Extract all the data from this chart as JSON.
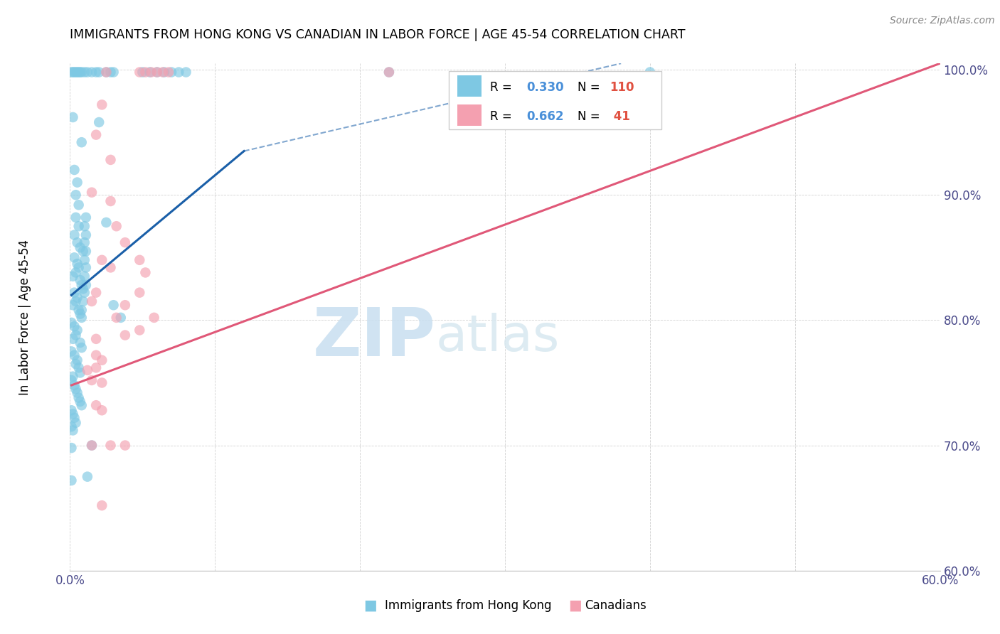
{
  "title": "IMMIGRANTS FROM HONG KONG VS CANADIAN IN LABOR FORCE | AGE 45-54 CORRELATION CHART",
  "source": "Source: ZipAtlas.com",
  "ylabel": "In Labor Force | Age 45-54",
  "xlim": [
    0.0,
    0.6
  ],
  "ylim": [
    0.6,
    1.005
  ],
  "xticks": [
    0.0,
    0.1,
    0.2,
    0.3,
    0.4,
    0.5,
    0.6
  ],
  "xticklabels": [
    "0.0%",
    "",
    "",
    "",
    "",
    "",
    "60.0%"
  ],
  "yticks": [
    0.6,
    0.7,
    0.8,
    0.9,
    1.0
  ],
  "yticklabels": [
    "60.0%",
    "70.0%",
    "80.0%",
    "90.0%",
    "100.0%"
  ],
  "blue_color": "#7ec8e3",
  "pink_color": "#f4a0b0",
  "blue_line_color": "#1a5fa8",
  "pink_line_color": "#e05878",
  "R_blue": 0.33,
  "N_blue": 110,
  "R_pink": 0.662,
  "N_pink": 41,
  "watermark": "ZIPatlas",
  "watermark_color": "#d0e8f5",
  "blue_line_solid": [
    [
      0.001,
      0.82
    ],
    [
      0.12,
      0.935
    ]
  ],
  "blue_line_dash": [
    [
      0.12,
      0.935
    ],
    [
      0.38,
      1.005
    ]
  ],
  "pink_line": [
    [
      0.001,
      0.748
    ],
    [
      0.6,
      1.005
    ]
  ],
  "blue_scatter": [
    [
      0.001,
      0.998
    ],
    [
      0.002,
      0.998
    ],
    [
      0.003,
      0.998
    ],
    [
      0.004,
      0.998
    ],
    [
      0.005,
      0.998
    ],
    [
      0.006,
      0.998
    ],
    [
      0.007,
      0.998
    ],
    [
      0.008,
      0.998
    ],
    [
      0.05,
      0.998
    ],
    [
      0.055,
      0.998
    ],
    [
      0.06,
      0.998
    ],
    [
      0.065,
      0.998
    ],
    [
      0.07,
      0.998
    ],
    [
      0.075,
      0.998
    ],
    [
      0.08,
      0.998
    ],
    [
      0.22,
      0.998
    ],
    [
      0.4,
      0.998
    ],
    [
      0.002,
      0.962
    ],
    [
      0.008,
      0.942
    ],
    [
      0.003,
      0.92
    ],
    [
      0.005,
      0.91
    ],
    [
      0.004,
      0.9
    ],
    [
      0.006,
      0.892
    ],
    [
      0.004,
      0.882
    ],
    [
      0.006,
      0.875
    ],
    [
      0.003,
      0.868
    ],
    [
      0.005,
      0.862
    ],
    [
      0.007,
      0.858
    ],
    [
      0.009,
      0.855
    ],
    [
      0.003,
      0.85
    ],
    [
      0.005,
      0.845
    ],
    [
      0.006,
      0.842
    ],
    [
      0.004,
      0.838
    ],
    [
      0.002,
      0.835
    ],
    [
      0.007,
      0.832
    ],
    [
      0.008,
      0.828
    ],
    [
      0.009,
      0.825
    ],
    [
      0.003,
      0.822
    ],
    [
      0.005,
      0.818
    ],
    [
      0.004,
      0.815
    ],
    [
      0.002,
      0.812
    ],
    [
      0.006,
      0.808
    ],
    [
      0.007,
      0.805
    ],
    [
      0.008,
      0.802
    ],
    [
      0.001,
      0.798
    ],
    [
      0.003,
      0.795
    ],
    [
      0.005,
      0.792
    ],
    [
      0.004,
      0.788
    ],
    [
      0.002,
      0.785
    ],
    [
      0.007,
      0.782
    ],
    [
      0.008,
      0.778
    ],
    [
      0.001,
      0.775
    ],
    [
      0.003,
      0.772
    ],
    [
      0.005,
      0.768
    ],
    [
      0.004,
      0.765
    ],
    [
      0.006,
      0.762
    ],
    [
      0.007,
      0.758
    ],
    [
      0.002,
      0.755
    ],
    [
      0.001,
      0.752
    ],
    [
      0.003,
      0.748
    ],
    [
      0.004,
      0.745
    ],
    [
      0.005,
      0.742
    ],
    [
      0.006,
      0.738
    ],
    [
      0.007,
      0.735
    ],
    [
      0.008,
      0.732
    ],
    [
      0.001,
      0.728
    ],
    [
      0.002,
      0.725
    ],
    [
      0.003,
      0.722
    ],
    [
      0.004,
      0.718
    ],
    [
      0.001,
      0.715
    ],
    [
      0.002,
      0.712
    ],
    [
      0.02,
      0.958
    ],
    [
      0.025,
      0.878
    ],
    [
      0.03,
      0.812
    ],
    [
      0.035,
      0.802
    ],
    [
      0.001,
      0.698
    ],
    [
      0.015,
      0.7
    ],
    [
      0.001,
      0.672
    ],
    [
      0.012,
      0.675
    ],
    [
      0.01,
      0.998
    ],
    [
      0.012,
      0.998
    ],
    [
      0.015,
      0.998
    ],
    [
      0.018,
      0.998
    ],
    [
      0.02,
      0.998
    ],
    [
      0.025,
      0.998
    ],
    [
      0.028,
      0.998
    ],
    [
      0.03,
      0.998
    ],
    [
      0.008,
      0.808
    ],
    [
      0.009,
      0.815
    ],
    [
      0.01,
      0.822
    ],
    [
      0.011,
      0.828
    ],
    [
      0.01,
      0.835
    ],
    [
      0.011,
      0.842
    ],
    [
      0.01,
      0.848
    ],
    [
      0.011,
      0.855
    ],
    [
      0.01,
      0.862
    ],
    [
      0.011,
      0.868
    ],
    [
      0.01,
      0.875
    ],
    [
      0.011,
      0.882
    ]
  ],
  "pink_scatter": [
    [
      0.025,
      0.998
    ],
    [
      0.048,
      0.998
    ],
    [
      0.052,
      0.998
    ],
    [
      0.056,
      0.998
    ],
    [
      0.06,
      0.998
    ],
    [
      0.064,
      0.998
    ],
    [
      0.068,
      0.998
    ],
    [
      0.22,
      0.998
    ],
    [
      0.022,
      0.972
    ],
    [
      0.018,
      0.948
    ],
    [
      0.028,
      0.928
    ],
    [
      0.015,
      0.902
    ],
    [
      0.028,
      0.895
    ],
    [
      0.032,
      0.875
    ],
    [
      0.038,
      0.862
    ],
    [
      0.022,
      0.848
    ],
    [
      0.028,
      0.842
    ],
    [
      0.048,
      0.848
    ],
    [
      0.048,
      0.822
    ],
    [
      0.018,
      0.822
    ],
    [
      0.015,
      0.815
    ],
    [
      0.038,
      0.812
    ],
    [
      0.032,
      0.802
    ],
    [
      0.018,
      0.785
    ],
    [
      0.038,
      0.788
    ],
    [
      0.048,
      0.792
    ],
    [
      0.018,
      0.772
    ],
    [
      0.022,
      0.768
    ],
    [
      0.015,
      0.752
    ],
    [
      0.022,
      0.75
    ],
    [
      0.018,
      0.732
    ],
    [
      0.022,
      0.728
    ],
    [
      0.015,
      0.7
    ],
    [
      0.038,
      0.7
    ],
    [
      0.028,
      0.7
    ],
    [
      0.022,
      0.652
    ],
    [
      0.012,
      0.76
    ],
    [
      0.018,
      0.762
    ],
    [
      0.058,
      0.802
    ],
    [
      0.052,
      0.838
    ]
  ]
}
